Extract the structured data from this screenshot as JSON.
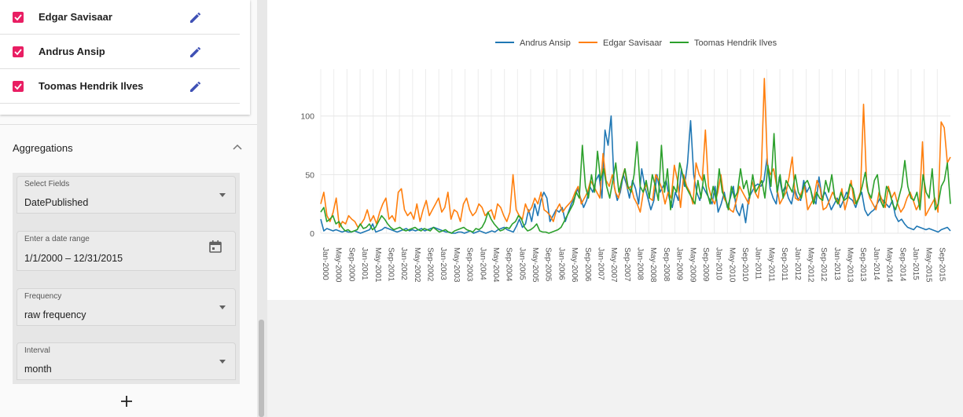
{
  "sidebar": {
    "entities": [
      {
        "name": "Edgar Savisaar",
        "checked": true,
        "edit_icon": "pencil-icon"
      },
      {
        "name": "Andrus Ansip",
        "checked": true,
        "edit_icon": "pencil-icon"
      },
      {
        "name": "Toomas Hendrik Ilves",
        "checked": true,
        "edit_icon": "pencil-icon"
      }
    ],
    "aggregations": {
      "title": "Aggregations",
      "fields": [
        {
          "label": "Select Fields",
          "value": "DatePublished",
          "icon": "dropdown-caret-icon"
        },
        {
          "label": "Enter a date range",
          "value": "1/1/2000 – 12/31/2015",
          "icon": "calendar-icon"
        },
        {
          "label": "Frequency",
          "value": "raw frequency",
          "icon": "dropdown-caret-icon"
        },
        {
          "label": "Interval",
          "value": "month",
          "icon": "dropdown-caret-icon"
        }
      ],
      "add_icon": "plus-icon"
    }
  },
  "colors": {
    "accent": "#e91e63",
    "edit": "#3f51b5",
    "andrus": "#1f77b4",
    "edgar": "#ff7f0e",
    "toomas": "#2ca02c"
  },
  "chart_data": {
    "type": "line",
    "title": "",
    "xlabel": "",
    "ylabel": "",
    "ylim": [
      0,
      140
    ],
    "yticks": [
      0,
      50,
      100
    ],
    "grid": true,
    "legend_position": "top-center",
    "x_tick_labels": [
      "Jan-2000",
      "May-2000",
      "Sep-2000",
      "Jan-2001",
      "May-2001",
      "Sep-2001",
      "Jan-2002",
      "May-2002",
      "Sep-2002",
      "Jan-2003",
      "May-2003",
      "Sep-2003",
      "Jan-2004",
      "May-2004",
      "Sep-2004",
      "Jan-2005",
      "May-2005",
      "Sep-2005",
      "Jan-2006",
      "May-2006",
      "Sep-2006",
      "Jan-2007",
      "May-2007",
      "Sep-2007",
      "Jan-2008",
      "May-2008",
      "Sep-2008",
      "Jan-2009",
      "May-2009",
      "Sep-2009",
      "Jan-2010",
      "May-2010",
      "Sep-2010",
      "Jan-2011",
      "May-2011",
      "Sep-2011",
      "Jan-2012",
      "May-2012",
      "Sep-2012",
      "Jan-2013",
      "May-2013",
      "Sep-2013",
      "Jan-2014",
      "May-2014",
      "Sep-2014",
      "Jan-2015",
      "May-2015",
      "Sep-2015"
    ],
    "series": [
      {
        "name": "Andrus Ansip",
        "color": "#1f77b4",
        "values": [
          12,
          2,
          4,
          3,
          2,
          3,
          2,
          1,
          2,
          1,
          1,
          2,
          1,
          0,
          1,
          2,
          3,
          8,
          1,
          2,
          3,
          5,
          4,
          3,
          2,
          1,
          2,
          3,
          4,
          2,
          3,
          2,
          3,
          4,
          2,
          3,
          4,
          5,
          4,
          3,
          2,
          1,
          1,
          0,
          0,
          1,
          1,
          0,
          1,
          2,
          0,
          1,
          2,
          1,
          0,
          1,
          2,
          1,
          3,
          4,
          5,
          3,
          2,
          1,
          6,
          12,
          5,
          8,
          20,
          10,
          25,
          15,
          28,
          35,
          30,
          10,
          15,
          20,
          18,
          22,
          10,
          18,
          25,
          30,
          38,
          30,
          22,
          28,
          40,
          35,
          45,
          50,
          30,
          88,
          75,
          100,
          40,
          28,
          35,
          50,
          42,
          30,
          45,
          38,
          25,
          55,
          40,
          30,
          20,
          28,
          50,
          35,
          40,
          45,
          30,
          22,
          35,
          28,
          55,
          40,
          60,
          96,
          50,
          35,
          28,
          40,
          35,
          30,
          25,
          40,
          18,
          25,
          35,
          22,
          30,
          40,
          20,
          15,
          25,
          9,
          30,
          35,
          40,
          42,
          40,
          45,
          64,
          38,
          30,
          25,
          48,
          35,
          40,
          30,
          25,
          38,
          30,
          28,
          45,
          35,
          40,
          30,
          25,
          48,
          30,
          35,
          28,
          20,
          25,
          30,
          22,
          28,
          35,
          30,
          28,
          22,
          30,
          35,
          20,
          15,
          18,
          20,
          25,
          30,
          28,
          25,
          22,
          28,
          15,
          10,
          12,
          8,
          5,
          4,
          3,
          6,
          5,
          4,
          3,
          4,
          3,
          2,
          1,
          3,
          4,
          5,
          2
        ]
      },
      {
        "name": "Edgar Savisaar",
        "color": "#ff7f0e",
        "values": [
          25,
          35,
          15,
          10,
          18,
          30,
          5,
          10,
          8,
          15,
          12,
          10,
          5,
          8,
          12,
          20,
          10,
          15,
          8,
          18,
          25,
          30,
          12,
          15,
          10,
          35,
          38,
          20,
          15,
          18,
          12,
          25,
          10,
          20,
          28,
          15,
          20,
          25,
          30,
          18,
          22,
          35,
          12,
          20,
          18,
          10,
          25,
          30,
          20,
          15,
          18,
          25,
          22,
          15,
          18,
          20,
          12,
          25,
          22,
          15,
          10,
          18,
          50,
          20,
          15,
          12,
          25,
          18,
          22,
          30,
          25,
          35,
          20,
          18,
          15,
          10,
          20,
          25,
          18,
          22,
          25,
          28,
          35,
          40,
          25,
          30,
          35,
          45,
          40,
          35,
          30,
          68,
          45,
          40,
          50,
          35,
          30,
          45,
          55,
          38,
          40,
          30,
          25,
          18,
          35,
          42,
          30,
          28,
          50,
          45,
          38,
          25,
          35,
          30,
          58,
          45,
          22,
          50,
          40,
          35,
          25,
          60,
          50,
          45,
          88,
          40,
          30,
          25,
          35,
          50,
          30,
          25,
          20,
          18,
          28,
          40,
          35,
          30,
          25,
          45,
          35,
          30,
          50,
          132,
          58,
          50,
          55,
          40,
          25,
          30,
          35,
          48,
          65,
          30,
          28,
          35,
          40,
          20,
          25,
          30,
          45,
          38,
          20,
          22,
          28,
          35,
          30,
          25,
          38,
          20,
          30,
          45,
          25,
          28,
          35,
          110,
          40,
          30,
          25,
          20,
          35,
          28,
          22,
          40,
          30,
          35,
          25,
          18,
          22,
          30,
          35,
          28,
          20,
          25,
          78,
          15,
          20,
          25,
          30,
          18,
          95,
          90,
          60,
          65
        ]
      },
      {
        "name": "Toomas Hendrik Ilves",
        "color": "#2ca02c",
        "values": [
          18,
          22,
          10,
          12,
          15,
          8,
          10,
          5,
          2,
          3,
          1,
          2,
          3,
          8,
          4,
          5,
          8,
          3,
          5,
          10,
          15,
          12,
          8,
          5,
          3,
          4,
          5,
          3,
          2,
          3,
          4,
          5,
          3,
          2,
          4,
          3,
          2,
          5,
          3,
          1,
          2,
          3,
          1,
          0,
          2,
          3,
          4,
          5,
          3,
          2,
          1,
          4,
          3,
          5,
          10,
          18,
          12,
          8,
          5,
          2,
          3,
          5,
          4,
          8,
          10,
          15,
          12,
          5,
          2,
          3,
          5,
          8,
          2,
          1,
          1,
          0,
          1,
          2,
          3,
          5,
          10,
          15,
          20,
          25,
          35,
          30,
          75,
          40,
          30,
          50,
          35,
          70,
          45,
          55,
          40,
          30,
          45,
          60,
          35,
          45,
          55,
          40,
          35,
          50,
          78,
          40,
          35,
          45,
          30,
          50,
          40,
          28,
          75,
          35,
          55,
          20,
          40,
          35,
          60,
          50,
          40,
          35,
          30,
          25,
          45,
          30,
          50,
          35,
          25,
          40,
          28,
          55,
          35,
          30,
          20,
          40,
          30,
          35,
          55,
          38,
          45,
          30,
          50,
          35,
          40,
          45,
          30,
          58,
          40,
          85,
          35,
          50,
          30,
          45,
          40,
          35,
          50,
          35,
          30,
          42,
          45,
          38,
          25,
          35,
          30,
          28,
          45,
          35,
          50,
          30,
          25,
          35,
          28,
          30,
          42,
          38,
          25,
          30,
          40,
          52,
          35,
          30,
          45,
          50,
          28,
          22,
          40,
          35,
          25,
          20,
          30,
          40,
          62,
          40,
          30,
          28,
          35,
          20,
          50,
          35,
          30,
          55,
          20,
          25,
          40,
          45,
          60,
          25
        ]
      }
    ]
  }
}
